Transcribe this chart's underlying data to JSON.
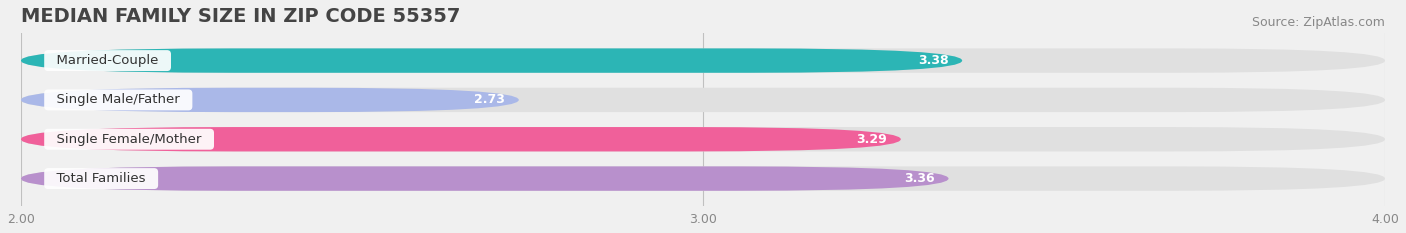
{
  "title": "MEDIAN FAMILY SIZE IN ZIP CODE 55357",
  "source": "Source: ZipAtlas.com",
  "categories": [
    "Married-Couple",
    "Single Male/Father",
    "Single Female/Mother",
    "Total Families"
  ],
  "values": [
    3.38,
    2.73,
    3.29,
    3.36
  ],
  "bar_colors": [
    "#2cb5b5",
    "#aab8e8",
    "#f0609a",
    "#b890cc"
  ],
  "label_colors": [
    "white",
    "#606060",
    "white",
    "white"
  ],
  "xmin": 2.0,
  "xmax": 4.0,
  "xticks": [
    2.0,
    3.0,
    4.0
  ],
  "xtick_labels": [
    "2.00",
    "3.00",
    "4.00"
  ],
  "background_color": "#f0f0f0",
  "bar_background_color": "#e0e0e0",
  "title_fontsize": 14,
  "source_fontsize": 9,
  "label_fontsize": 9.5,
  "value_fontsize": 9,
  "tick_fontsize": 9,
  "bar_height": 0.62
}
